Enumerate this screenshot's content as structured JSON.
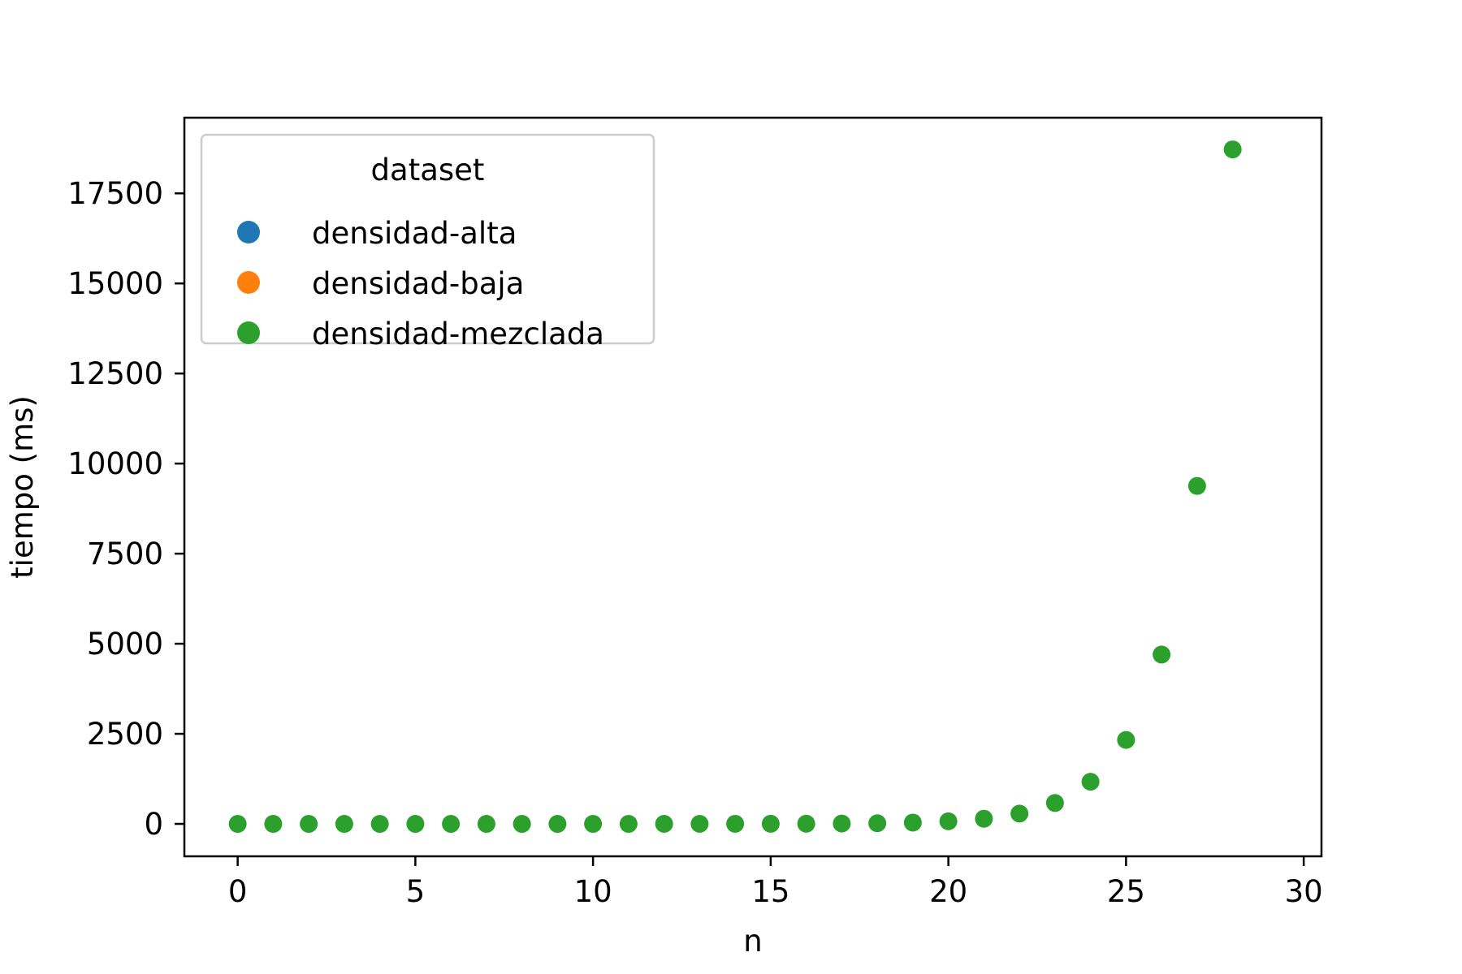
{
  "chart_data": {
    "type": "scatter",
    "title": "",
    "xlabel": "n",
    "ylabel": "tiempo (ms)",
    "xlim": [
      -1.5,
      30.5
    ],
    "ylim": [
      -900,
      19600
    ],
    "x_ticks": [
      0,
      5,
      10,
      15,
      20,
      25,
      30
    ],
    "y_ticks": [
      0,
      2500,
      5000,
      7500,
      10000,
      12500,
      15000,
      17500
    ],
    "grid": false,
    "legend": {
      "title": "dataset",
      "placement": "top-left",
      "entries": [
        "densidad-alta",
        "densidad-baja",
        "densidad-mezclada"
      ]
    },
    "series": [
      {
        "name": "densidad-alta",
        "color": "#1f77b4",
        "points": []
      },
      {
        "name": "densidad-baja",
        "color": "#ff7f0e",
        "points": []
      },
      {
        "name": "densidad-mezclada",
        "color": "#2ca02c",
        "points": [
          [
            0,
            0
          ],
          [
            1,
            0
          ],
          [
            2,
            0
          ],
          [
            3,
            0
          ],
          [
            4,
            0
          ],
          [
            5,
            0
          ],
          [
            6,
            0
          ],
          [
            7,
            0
          ],
          [
            8,
            0
          ],
          [
            9,
            0
          ],
          [
            10,
            0
          ],
          [
            11,
            0
          ],
          [
            12,
            1
          ],
          [
            13,
            1
          ],
          [
            14,
            2
          ],
          [
            15,
            3
          ],
          [
            16,
            5
          ],
          [
            17,
            9
          ],
          [
            18,
            18
          ],
          [
            19,
            36
          ],
          [
            20,
            72
          ],
          [
            21,
            143
          ],
          [
            22,
            285
          ],
          [
            23,
            580
          ],
          [
            24,
            1170
          ],
          [
            25,
            2330
          ],
          [
            26,
            4700
          ],
          [
            27,
            9380
          ],
          [
            28,
            18720
          ]
        ]
      }
    ]
  }
}
